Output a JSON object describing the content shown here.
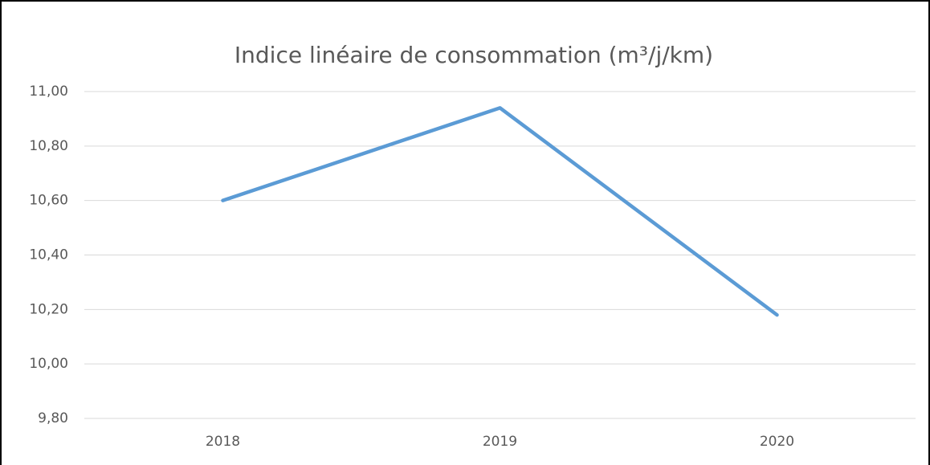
{
  "chart_data": {
    "type": "line",
    "title": "Indice linéaire de consommation (m³/j/km)",
    "categories": [
      "2018",
      "2019",
      "2020"
    ],
    "values": [
      10.6,
      10.94,
      10.18
    ],
    "color": "#5b9bd5",
    "ylim": [
      9.8,
      11.0
    ],
    "yticks": [
      {
        "value": 9.8,
        "label": "9,80"
      },
      {
        "value": 10.0,
        "label": "10,00"
      },
      {
        "value": 10.2,
        "label": "10,20"
      },
      {
        "value": 10.4,
        "label": "10,40"
      },
      {
        "value": 10.6,
        "label": "10,60"
      },
      {
        "value": 10.8,
        "label": "10,80"
      },
      {
        "value": 11.0,
        "label": "11,00"
      }
    ],
    "grid": true
  }
}
